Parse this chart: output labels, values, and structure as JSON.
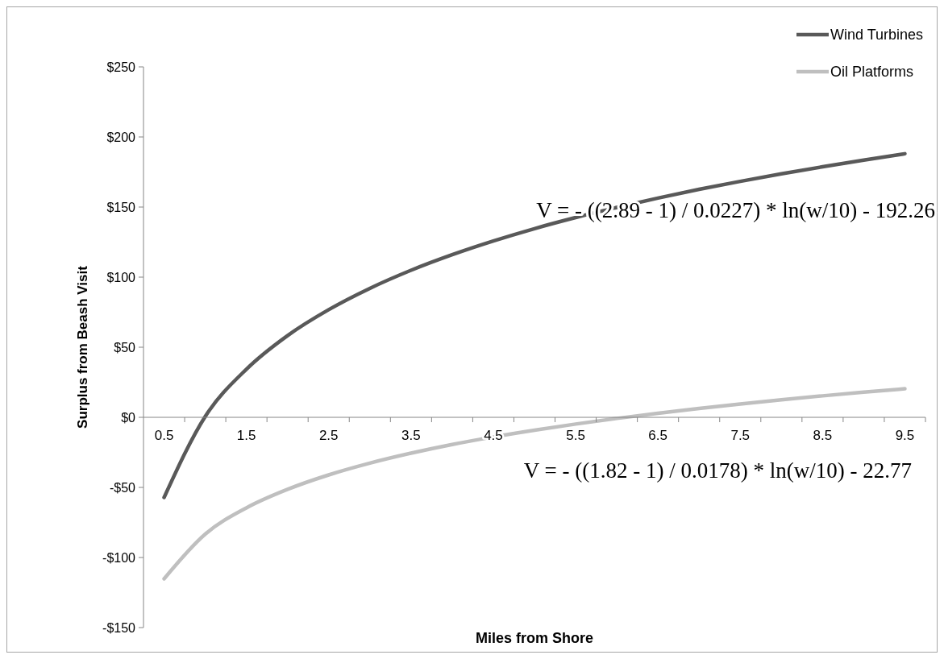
{
  "chart_data": {
    "type": "line",
    "xlabel": "Miles from Shore",
    "ylabel": "Surplus from Beash Visit",
    "categories": [
      "0.5",
      null,
      "1.5",
      null,
      "2.5",
      null,
      "3.5",
      null,
      "4.5",
      null,
      "5.5",
      null,
      "6.5",
      null,
      "7.5",
      null,
      "8.5",
      null,
      "9.5"
    ],
    "series": [
      {
        "name": "Wind Turbines",
        "color": "#595959",
        "values": [
          -57.2,
          0.6,
          34.3,
          58.3,
          76.8,
          92.0,
          104.9,
          116.0,
          125.8,
          134.6,
          142.5,
          149.7,
          156.4,
          162.6,
          168.3,
          173.7,
          178.7,
          183.5,
          188.0
        ]
      },
      {
        "name": "Oil Platforms",
        "color": "#bfbfbf",
        "values": [
          -115.2,
          -83.3,
          -64.6,
          -51.4,
          -41.1,
          -32.7,
          -25.6,
          -19.4,
          -14.0,
          -9.2,
          -4.8,
          -0.8,
          2.9,
          6.3,
          9.5,
          12.5,
          15.3,
          17.9,
          20.4
        ]
      }
    ],
    "ylim": [
      -150,
      250
    ],
    "yticks": [
      {
        "value": -150,
        "label": "-$150"
      },
      {
        "value": -100,
        "label": "-$100"
      },
      {
        "value": -50,
        "label": "-$50"
      },
      {
        "value": 0,
        "label": "$0"
      },
      {
        "value": 50,
        "label": "$50"
      },
      {
        "value": 100,
        "label": "$100"
      },
      {
        "value": 150,
        "label": "$150"
      },
      {
        "value": 200,
        "label": "$200"
      },
      {
        "value": 250,
        "label": "$250"
      }
    ],
    "annotations": [
      "V = - ((2.89 - 1) / 0.0227) * ln(w/10) - 192.26",
      "V = - ((1.82 - 1) / 0.0178) * ln(w/10) - 22.77"
    ],
    "legend": "top right",
    "grid": false,
    "marker": "none",
    "line_style": "solid"
  }
}
